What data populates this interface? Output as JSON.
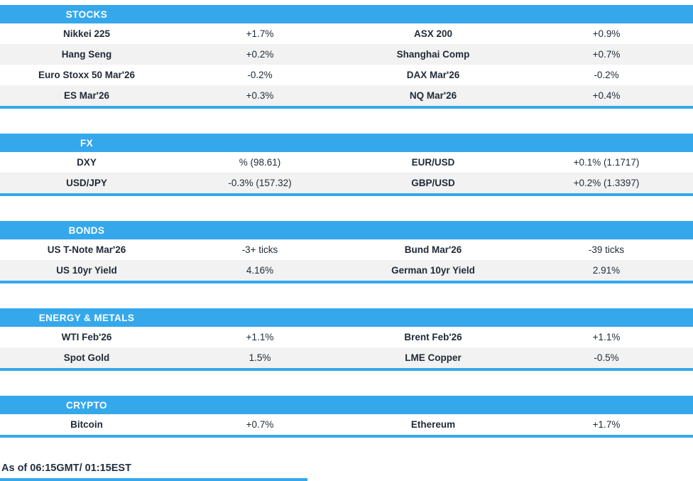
{
  "colors": {
    "accent": "#35a8ec",
    "row_alt": "#f2f2f2",
    "text": "#1f2a37"
  },
  "sections": [
    {
      "id": "stocks",
      "title": "STOCKS",
      "rows": [
        [
          "Nikkei 225",
          "+1.7%",
          "ASX 200",
          "+0.9%"
        ],
        [
          "Hang Seng",
          "+0.2%",
          "Shanghai Comp",
          "+0.7%"
        ],
        [
          "Euro Stoxx 50 Mar'26",
          "-0.2%",
          "DAX Mar'26",
          "-0.2%"
        ],
        [
          "ES Mar'26",
          "+0.3%",
          "NQ Mar'26",
          "+0.4%"
        ]
      ]
    },
    {
      "id": "fx",
      "title": "FX",
      "rows": [
        [
          "DXY",
          "% (98.61)",
          "EUR/USD",
          "+0.1% (1.1717)"
        ],
        [
          "USD/JPY",
          "-0.3% (157.32)",
          "GBP/USD",
          "+0.2% (1.3397)"
        ]
      ]
    },
    {
      "id": "bonds",
      "title": "BONDS",
      "rows": [
        [
          "US T-Note Mar'26",
          "-3+ ticks",
          "Bund Mar'26",
          "-39 ticks"
        ],
        [
          "US 10yr Yield",
          "4.16%",
          "German 10yr Yield",
          "2.91%"
        ]
      ]
    },
    {
      "id": "energy-metals",
      "title": "ENERGY & METALS",
      "rows": [
        [
          "WTI Feb'26",
          "+1.1%",
          "Brent Feb'26",
          "+1.1%"
        ],
        [
          "Spot Gold",
          "1.5%",
          "LME Copper",
          "-0.5%"
        ]
      ]
    },
    {
      "id": "crypto",
      "title": "CRYPTO",
      "rows": [
        [
          "Bitcoin",
          "+0.7%",
          "Ethereum",
          "+1.7%"
        ]
      ]
    }
  ],
  "footer": {
    "as_of": "As of 06:15GMT/ 01:15EST"
  }
}
